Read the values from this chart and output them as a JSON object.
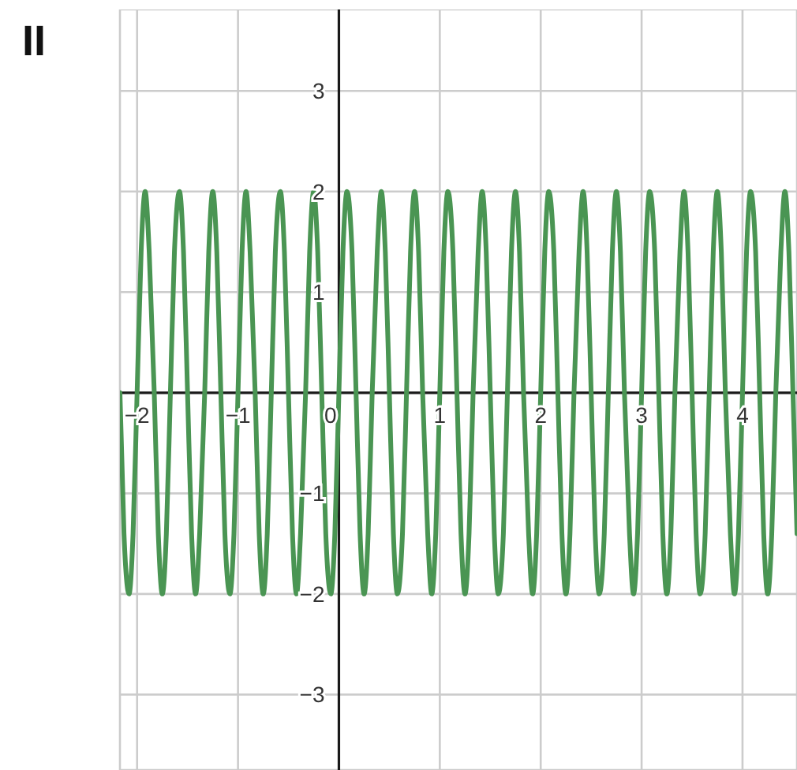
{
  "chart_data": {
    "type": "line",
    "title": "II",
    "x": [
      -2.17,
      -2.13,
      -2.08,
      -2.04,
      -2,
      -1.96,
      -1.92,
      -1.88,
      -1.83,
      -1.79,
      -1.75,
      -1.71,
      -1.67,
      -1.63,
      -1.58,
      -1.54,
      -1.5,
      -1.46,
      -1.42,
      -1.38,
      -1.33,
      -1.29,
      -1.25,
      -1.21,
      -1.17,
      -1.13,
      -1.08,
      -1.04,
      -1,
      -0.96,
      -0.92,
      -0.88,
      -0.83,
      -0.79,
      -0.75,
      -0.71,
      -0.67,
      -0.63,
      -0.58,
      -0.54,
      -0.5,
      -0.46,
      -0.42,
      -0.38,
      -0.33,
      -0.29,
      -0.25,
      -0.21,
      -0.17,
      -0.13,
      -0.08,
      -0.04,
      0,
      0.04,
      0.08,
      0.13,
      0.17,
      0.21,
      0.25,
      0.29,
      0.33,
      0.38,
      0.42,
      0.46,
      0.5,
      0.54,
      0.58,
      0.63,
      0.67,
      0.71,
      0.75,
      0.79,
      0.83,
      0.88,
      0.92,
      0.96,
      1,
      1.04,
      1.08,
      1.13,
      1.17,
      1.21,
      1.25,
      1.29,
      1.33,
      1.38,
      1.42,
      1.46,
      1.5,
      1.54,
      1.58,
      1.63,
      1.67,
      1.71,
      1.75,
      1.79,
      1.83,
      1.88,
      1.92,
      1.96,
      2,
      2.04,
      2.08,
      2.13,
      2.17,
      2.21,
      2.25,
      2.29,
      2.33,
      2.38,
      2.42,
      2.46,
      2.5,
      2.54,
      2.58,
      2.63,
      2.67,
      2.71,
      2.75,
      2.79,
      2.83,
      2.88,
      2.92,
      2.96,
      3,
      3.04,
      3.08,
      3.13,
      3.17,
      3.21,
      3.25,
      3.29,
      3.33,
      3.38,
      3.42,
      3.46,
      3.5,
      3.54,
      3.58,
      3.63,
      3.67,
      3.71,
      3.75,
      3.79,
      3.83,
      3.88,
      3.92,
      3.96,
      4,
      4.04,
      4.08,
      4.13,
      4.17,
      4.21,
      4.25,
      4.29,
      4.33,
      4.38,
      4.42,
      4.46,
      4.5,
      4.54
    ],
    "values": [
      0,
      -1.4,
      -2,
      -1.4,
      0,
      1.4,
      2,
      1.4,
      0,
      -1.4,
      -2,
      -1.4,
      0,
      1.4,
      2,
      1.4,
      0,
      -1.4,
      -2,
      -1.4,
      0,
      1.4,
      2,
      1.4,
      0,
      -1.4,
      -2,
      -1.4,
      0,
      1.4,
      2,
      1.4,
      0,
      -1.4,
      -2,
      -1.4,
      0,
      1.4,
      2,
      1.4,
      0,
      -1.4,
      -2,
      -1.4,
      0,
      1.4,
      2,
      1.4,
      0,
      -1.4,
      -2,
      -1.4,
      0,
      1.4,
      2,
      1.4,
      0,
      -1.4,
      -2,
      -1.4,
      0,
      1.4,
      2,
      1.4,
      0,
      -1.4,
      -2,
      -1.4,
      0,
      1.4,
      2,
      1.4,
      0,
      -1.4,
      -2,
      -1.4,
      0,
      1.4,
      2,
      1.4,
      0,
      -1.4,
      -2,
      -1.4,
      0,
      1.4,
      2,
      1.4,
      0,
      -1.4,
      -2,
      -1.4,
      0,
      1.4,
      2,
      1.4,
      0,
      -1.4,
      -2,
      -1.4,
      0,
      1.4,
      2,
      1.4,
      0,
      -1.4,
      -2,
      -1.4,
      0,
      1.4,
      2,
      1.4,
      0,
      -1.4,
      -2,
      -1.4,
      0,
      1.4,
      2,
      1.4,
      0,
      -1.4,
      -2,
      -1.4,
      0,
      1.4,
      2,
      1.4,
      0,
      -1.4,
      -2,
      -1.4,
      0,
      1.4,
      2,
      1.4,
      0,
      -1.4,
      -2,
      -1.4,
      0,
      1.4,
      2,
      1.4,
      0,
      -1.4,
      -2,
      -1.4,
      0,
      1.4,
      2,
      1.4,
      0,
      -1.4,
      -2,
      -1.4,
      0,
      1.4,
      2,
      1.4,
      0,
      -1.4
    ],
    "color": "#4a9553",
    "xlim": [
      -2.17,
      4.54
    ],
    "ylim": [
      -3.75,
      3.81
    ],
    "xticks": [
      -2,
      -1,
      0,
      1,
      2,
      3,
      4
    ],
    "yticks": [
      -3,
      -2,
      -1,
      1,
      2,
      3
    ],
    "grid": true
  }
}
